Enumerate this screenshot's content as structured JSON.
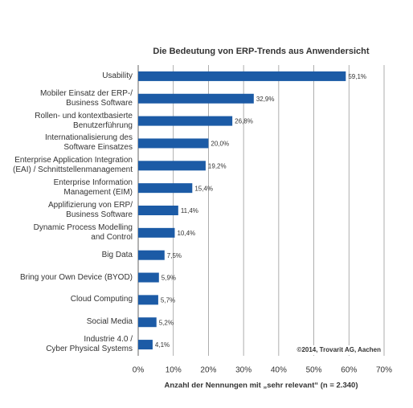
{
  "chart_data": {
    "type": "bar",
    "orientation": "horizontal",
    "title": "Die Bedeutung von ERP-Trends aus Anwendersicht",
    "x_label": "Anzahl der Nennungen mit „sehr relevant“ (n = 2.340)",
    "annotation": "©2014, Trovarit AG, Aachen",
    "categories": [
      "Usability",
      "Mobiler Einsatz der ERP-/\nBusiness Software",
      "Rollen- und kontextbasierte\nBenutzerführung",
      "Internationalisierung des\nSoftware Einsatzes",
      "Enterprise Application Integration\n(EAI) / Schnittstellenmanagement",
      "Enterprise Information\nManagement (EIM)",
      "Applifizierung von ERP/\nBusiness Software",
      "Dynamic Process Modelling\nand Control",
      "Big Data",
      "Bring your Own Device (BYOD)",
      "Cloud Computing",
      "Social Media",
      "Industrie 4.0 /\nCyber Physical Systems"
    ],
    "values": [
      59.1,
      32.9,
      26.8,
      20.0,
      19.2,
      15.4,
      11.4,
      10.4,
      7.5,
      5.9,
      5.7,
      5.2,
      4.1
    ],
    "value_labels": [
      "59,1%",
      "32,9%",
      "26,8%",
      "20,0%",
      "19,2%",
      "15,4%",
      "11,4%",
      "10,4%",
      "7,5%",
      "5,9%",
      "5,7%",
      "5,2%",
      "4,1%"
    ],
    "color": "#1c5ba6",
    "xlim": [
      0,
      70
    ],
    "xticks": [
      {
        "value": 0,
        "label": "0%"
      },
      {
        "value": 10,
        "label": "10%"
      },
      {
        "value": 20,
        "label": "20%"
      },
      {
        "value": 30,
        "label": "30%"
      },
      {
        "value": 40,
        "label": "40%"
      },
      {
        "value": 50,
        "label": "50%"
      },
      {
        "value": 60,
        "label": "60%"
      },
      {
        "value": 70,
        "label": "70%"
      }
    ],
    "grid": true
  }
}
